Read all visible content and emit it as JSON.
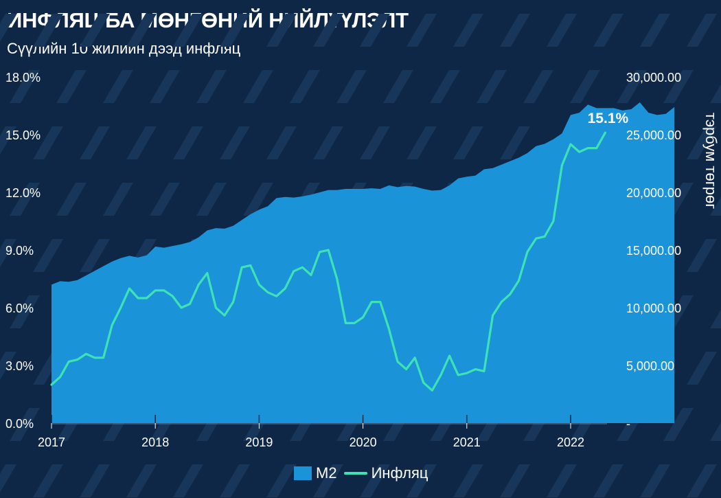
{
  "title": "ИНФЛЯЦ БА МӨНГӨНИЙ НИЙЛҮҮЛЭЛТ",
  "subtitle": "Сүүлийн 10 жилийн дээд инфляц",
  "colors": {
    "background": "#0f2747",
    "stripe": "#183659",
    "m2_area": "#1a93d9",
    "inflation_line": "#3ee3b5",
    "grid": "#3f6a96"
  },
  "chart_data": {
    "type": "area",
    "title": "ИНФЛЯЦ БА МӨНГӨНИЙ НИЙЛҮҮЛЭЛТ",
    "subtitle": "Сүүлийн 10 жилийн дээд инфляц",
    "x_ticks": [
      "2017",
      "2018",
      "2019",
      "2020",
      "2021",
      "2022"
    ],
    "y_left": {
      "ticks": [
        "0.0%",
        "3.0%",
        "6.0%",
        "9.0%",
        "12.0%",
        "15.0%",
        "18.0%"
      ],
      "range": [
        0,
        18
      ],
      "label": ""
    },
    "y_right": {
      "ticks": [
        "-",
        "5,000.00",
        "10,000.00",
        "15,000.00",
        "20,000.00",
        "25,000.00",
        "30,000.00"
      ],
      "range": [
        0,
        30000
      ],
      "label": "тэрбум төгрөг"
    },
    "grid": false,
    "legend_position": "bottom",
    "annotation": "15.1%",
    "x_start": "2017-01",
    "x_step": "month",
    "series": [
      {
        "name": "M2",
        "type": "area",
        "axis": "right",
        "values": [
          12000,
          12300,
          12250,
          12400,
          12800,
          13200,
          13600,
          14000,
          14300,
          14500,
          14350,
          14550,
          15300,
          15200,
          15350,
          15500,
          15700,
          16100,
          16700,
          16900,
          16850,
          17100,
          17600,
          18100,
          18500,
          18800,
          19500,
          19600,
          19550,
          19650,
          19800,
          20000,
          20200,
          20200,
          20300,
          20300,
          20300,
          20350,
          20300,
          20600,
          20450,
          20550,
          20500,
          20300,
          20150,
          20200,
          20600,
          21200,
          21350,
          21450,
          22000,
          22100,
          22400,
          22700,
          23000,
          23400,
          24000,
          24200,
          24600,
          25100,
          26700,
          26900,
          27600,
          27300,
          27300,
          27300,
          27100,
          27200,
          27800,
          26900,
          26700,
          26800,
          27400
        ]
      },
      {
        "name": "Инфляц",
        "type": "line",
        "axis": "left",
        "values": [
          2.0,
          2.4,
          3.2,
          3.3,
          3.6,
          3.4,
          3.4,
          5.1,
          6.0,
          7.0,
          6.5,
          6.5,
          6.9,
          6.9,
          6.6,
          6.0,
          6.2,
          7.2,
          7.8,
          6.0,
          5.6,
          6.3,
          8.1,
          8.2,
          7.2,
          6.8,
          6.6,
          7.0,
          7.9,
          8.1,
          7.7,
          8.9,
          9.0,
          7.5,
          5.2,
          5.2,
          5.5,
          6.3,
          6.3,
          4.9,
          3.2,
          2.8,
          3.4,
          2.1,
          1.7,
          2.5,
          3.5,
          2.5,
          2.6,
          2.8,
          2.7,
          5.6,
          6.3,
          6.7,
          7.4,
          8.9,
          9.6,
          9.7,
          10.5,
          13.4,
          14.5,
          14.1,
          14.3,
          14.3,
          15.1
        ]
      }
    ]
  },
  "legend": {
    "m2": "M2",
    "inflation": "Инфляц"
  }
}
